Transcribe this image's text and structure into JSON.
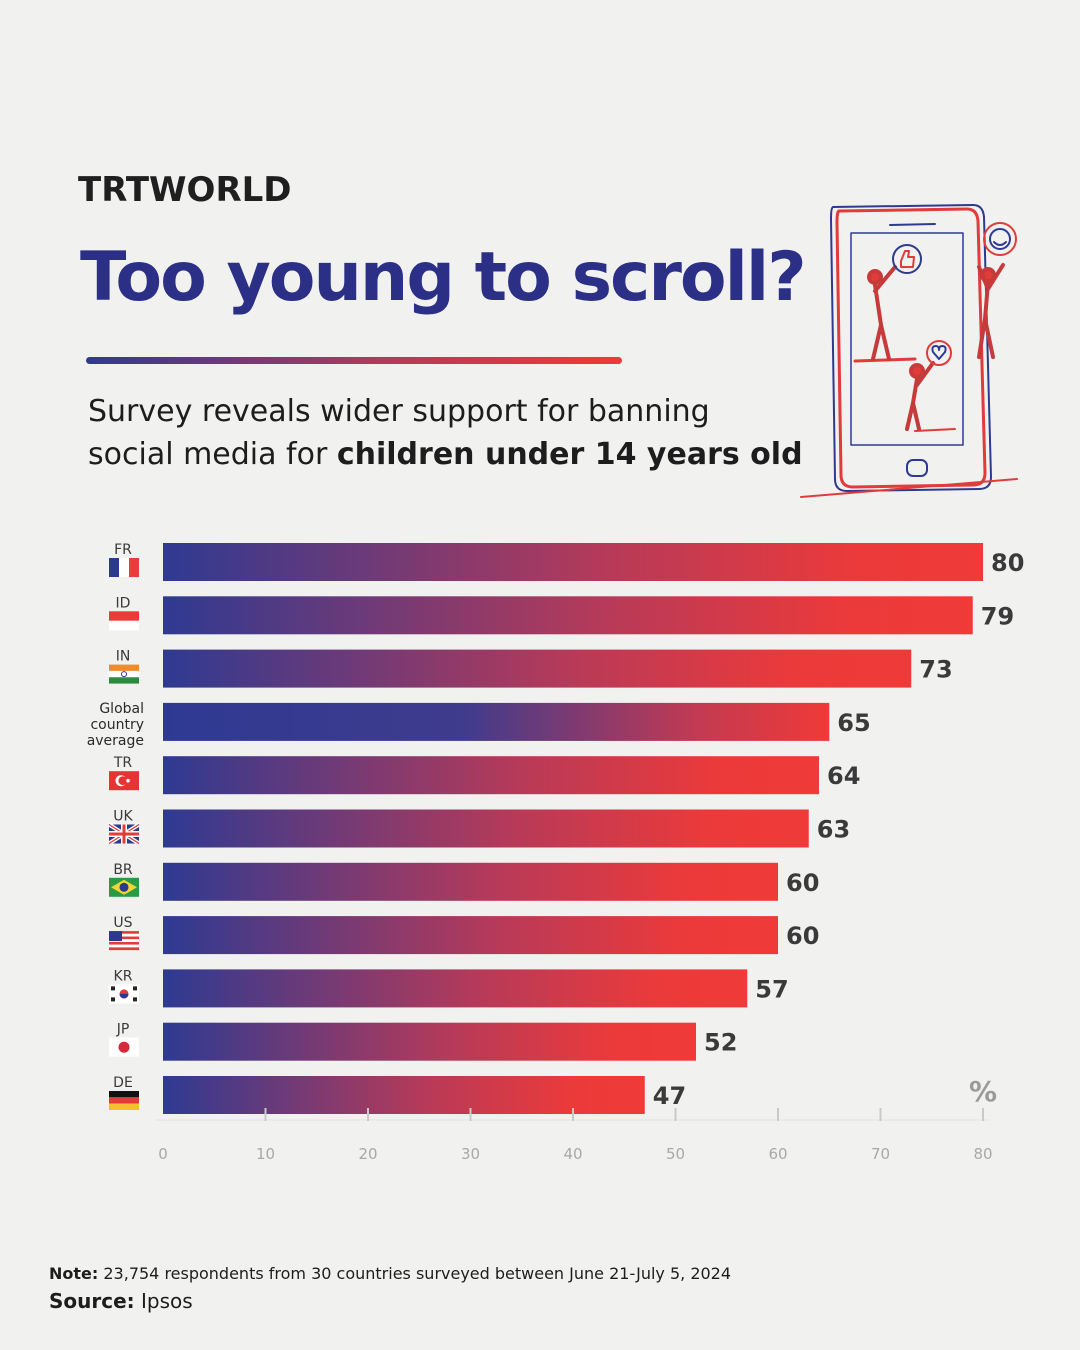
{
  "brand": {
    "logo_text": "TRTWORLD"
  },
  "header": {
    "title": "Too young to scroll?",
    "subtitle_line1": "Survey reveals wider support for banning",
    "subtitle_line2_plain": "social media for ",
    "subtitle_line2_bold": "children under 14 years old"
  },
  "illustration": {
    "icon": "phone-with-people-and-reaction-icons"
  },
  "colors": {
    "title": "#2b2f86",
    "bar_start": "#2e3a92",
    "bar_end": "#ef3a38"
  },
  "chart_data": {
    "type": "bar",
    "orientation": "horizontal",
    "categories": [
      "FR",
      "ID",
      "IN",
      "Global country average",
      "TR",
      "UK",
      "BR",
      "US",
      "KR",
      "JP",
      "DE"
    ],
    "category_lines": [
      [
        "FR"
      ],
      [
        "ID"
      ],
      [
        "IN"
      ],
      [
        "Global",
        "country",
        "average"
      ],
      [
        "TR"
      ],
      [
        "UK"
      ],
      [
        "BR"
      ],
      [
        "US"
      ],
      [
        "KR"
      ],
      [
        "JP"
      ],
      [
        "DE"
      ]
    ],
    "flags": [
      "fr",
      "id",
      "in",
      "",
      "tr",
      "uk",
      "br",
      "us",
      "kr",
      "jp",
      "de"
    ],
    "values": [
      80,
      79,
      73,
      65,
      64,
      63,
      60,
      60,
      57,
      52,
      47
    ],
    "xlim": [
      0,
      80
    ],
    "x_ticks": [
      0,
      10,
      20,
      30,
      40,
      50,
      60,
      70,
      80
    ],
    "unit_label": "%",
    "grid": false
  },
  "footer": {
    "note_label": "Note:",
    "note_text": " 23,754 respondents from 30 countries surveyed between June 21-July 5, 2024",
    "source_label": "Source:",
    "source_text": " Ipsos"
  }
}
